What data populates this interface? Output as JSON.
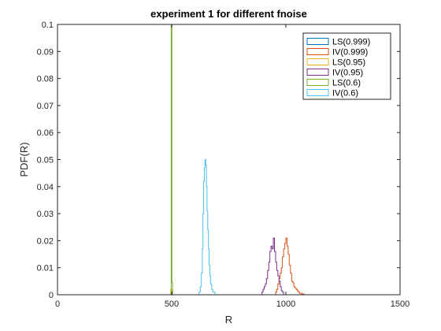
{
  "chart_data": {
    "type": "line",
    "title": "experiment 1 for different fnoise",
    "xlabel": "R",
    "ylabel": "PDF(R)",
    "xlim": [
      0,
      1500
    ],
    "ylim": [
      0,
      0.1
    ],
    "x_ticks": [
      0,
      500,
      1000,
      1500
    ],
    "x_tick_labels": [
      "0",
      "500",
      "1000",
      "1500"
    ],
    "y_ticks": [
      0,
      0.01,
      0.02,
      0.03,
      0.04,
      0.05,
      0.06,
      0.07,
      0.08,
      0.09,
      0.1
    ],
    "y_tick_labels": [
      "0",
      "0.01",
      "0.02",
      "0.03",
      "0.04",
      "0.05",
      "0.06",
      "0.07",
      "0.08",
      "0.09",
      "0.1"
    ],
    "grid": false,
    "legend_position": "top-right",
    "plot_style": "stairs",
    "series": [
      {
        "name": "LS(0.999)",
        "color": "#0072BD",
        "points": [
          [
            495,
            0
          ],
          [
            498,
            0.0008
          ],
          [
            500,
            0.0008
          ],
          [
            502,
            0
          ]
        ]
      },
      {
        "name": "IV(0.999)",
        "color": "#D95319",
        "points": [
          [
            950,
            0
          ],
          [
            955,
            0.001
          ],
          [
            960,
            0.002
          ],
          [
            965,
            0.004
          ],
          [
            970,
            0.006
          ],
          [
            975,
            0.008
          ],
          [
            980,
            0.01
          ],
          [
            985,
            0.014
          ],
          [
            990,
            0.017
          ],
          [
            995,
            0.019
          ],
          [
            1000,
            0.021
          ],
          [
            1005,
            0.018
          ],
          [
            1010,
            0.015
          ],
          [
            1015,
            0.011
          ],
          [
            1020,
            0.008
          ],
          [
            1025,
            0.005
          ],
          [
            1030,
            0.0045
          ],
          [
            1035,
            0.003
          ],
          [
            1040,
            0.0025
          ],
          [
            1045,
            0.002
          ],
          [
            1050,
            0.0015
          ],
          [
            1055,
            0.001
          ],
          [
            1060,
            0.0005
          ],
          [
            1070,
            0.0003
          ],
          [
            1080,
            0
          ]
        ]
      },
      {
        "name": "LS(0.95)",
        "color": "#EDB120",
        "points": [
          [
            494,
            0
          ],
          [
            496,
            0.002
          ],
          [
            499,
            0.002
          ],
          [
            501,
            0
          ]
        ]
      },
      {
        "name": "IV(0.95)",
        "color": "#7E2F8E",
        "points": [
          [
            890,
            0
          ],
          [
            895,
            0.001
          ],
          [
            900,
            0.002
          ],
          [
            905,
            0.003
          ],
          [
            910,
            0.004
          ],
          [
            915,
            0.006
          ],
          [
            920,
            0.009
          ],
          [
            925,
            0.012
          ],
          [
            930,
            0.016
          ],
          [
            935,
            0.018
          ],
          [
            940,
            0.017
          ],
          [
            945,
            0.021
          ],
          [
            950,
            0.016
          ],
          [
            955,
            0.012
          ],
          [
            960,
            0.009
          ],
          [
            965,
            0.007
          ],
          [
            970,
            0.005
          ],
          [
            975,
            0.003
          ],
          [
            980,
            0.0015
          ],
          [
            985,
            0.001
          ],
          [
            990,
            0
          ]
        ]
      },
      {
        "name": "LS(0.6)",
        "color": "#77AC30",
        "points": [
          [
            497,
            0
          ],
          [
            498,
            0.1
          ],
          [
            500,
            0.1
          ],
          [
            501,
            0.0045
          ],
          [
            503,
            0.0045
          ],
          [
            504,
            0
          ]
        ]
      },
      {
        "name": "IV(0.6)",
        "color": "#4DBEEE",
        "points": [
          [
            615,
            0
          ],
          [
            620,
            0.001
          ],
          [
            625,
            0.003
          ],
          [
            630,
            0.008
          ],
          [
            634,
            0.017
          ],
          [
            637,
            0.03
          ],
          [
            640,
            0.042
          ],
          [
            643,
            0.047
          ],
          [
            646,
            0.05
          ],
          [
            649,
            0.048
          ],
          [
            652,
            0.04
          ],
          [
            655,
            0.031
          ],
          [
            658,
            0.024
          ],
          [
            661,
            0.017
          ],
          [
            664,
            0.011
          ],
          [
            667,
            0.007
          ],
          [
            670,
            0.004
          ],
          [
            675,
            0.002
          ],
          [
            680,
            0.001
          ],
          [
            690,
            0
          ]
        ]
      }
    ]
  }
}
